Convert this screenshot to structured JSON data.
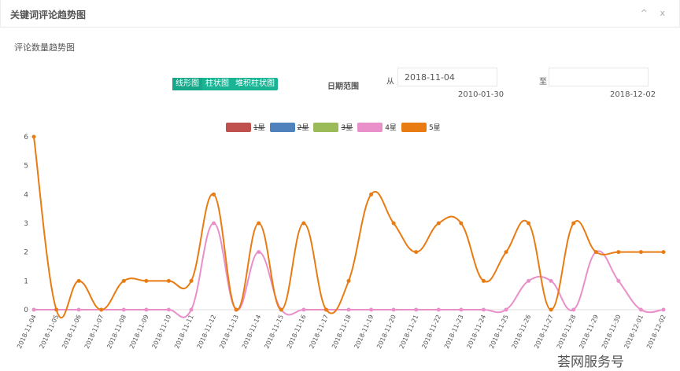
{
  "header": {
    "title": "关键词评论趋势图",
    "controls": "^ x"
  },
  "subtitle": "评论数量趋势图",
  "chart_types": [
    "线形图",
    "柱状图",
    "堆积柱状图"
  ],
  "date_range": {
    "label": "日期范围",
    "from_label": "从",
    "from_value": "2018-11-04",
    "from_min": "2010-01-30",
    "to_label": "至",
    "to_value": "",
    "to_max": "2018-12-02"
  },
  "watermark": "荟网服务号",
  "chart_data": {
    "type": "line",
    "categories": [
      "2018-11-04",
      "2018-11-05",
      "2018-11-06",
      "2018-11-07",
      "2018-11-08",
      "2018-11-09",
      "2018-11-10",
      "2018-11-11",
      "2018-11-12",
      "2018-11-13",
      "2018-11-14",
      "2018-11-15",
      "2018-11-16",
      "2018-11-17",
      "2018-11-18",
      "2018-11-19",
      "2018-11-20",
      "2018-11-21",
      "2018-11-22",
      "2018-11-23",
      "2018-11-24",
      "2018-11-25",
      "2018-11-26",
      "2018-11-27",
      "2018-11-28",
      "2018-11-29",
      "2018-11-30",
      "2018-12-01",
      "2018-12-02"
    ],
    "ylim": [
      0,
      6
    ],
    "yticks": [
      "0",
      "1",
      "2",
      "3",
      "4",
      "5",
      "6"
    ],
    "legend": [
      {
        "name": "1星",
        "color": "#c0504d",
        "hidden": true
      },
      {
        "name": "2星",
        "color": "#4f81bd",
        "hidden": true
      },
      {
        "name": "3星",
        "color": "#9bbb59",
        "hidden": true
      },
      {
        "name": "4星",
        "color": "#e98fc9",
        "hidden": false
      },
      {
        "name": "5星",
        "color": "#e87b12",
        "hidden": false
      }
    ],
    "series": [
      {
        "name": "4星",
        "color": "#e98fc9",
        "values": [
          0,
          0,
          0,
          0,
          0,
          0,
          0,
          0,
          3,
          0,
          2,
          0,
          0,
          0,
          0,
          0,
          0,
          0,
          0,
          0,
          0,
          0,
          1,
          1,
          0,
          2,
          1,
          0,
          0
        ]
      },
      {
        "name": "5星",
        "color": "#e87b12",
        "values": [
          6,
          0,
          1,
          0,
          1,
          1,
          1,
          1,
          4,
          0,
          3,
          0,
          3,
          0,
          1,
          4,
          3,
          2,
          3,
          3,
          1,
          2,
          3,
          0,
          3,
          2,
          2,
          2,
          2
        ]
      }
    ]
  }
}
